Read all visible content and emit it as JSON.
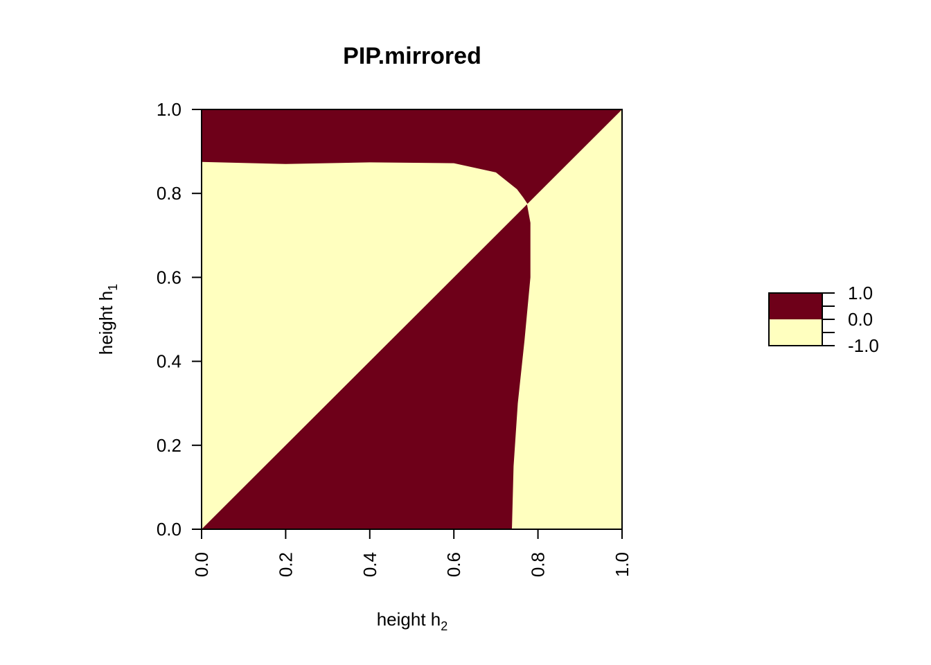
{
  "chart_data": {
    "type": "heatmap",
    "title": "PIP.mirrored",
    "xlabel": {
      "base": "height h",
      "subscript": "2"
    },
    "ylabel": {
      "base": "height h",
      "subscript": "1"
    },
    "xlim": [
      0,
      1
    ],
    "ylim": [
      0,
      1
    ],
    "x_ticks": [
      "0.0",
      "0.2",
      "0.4",
      "0.6",
      "0.8",
      "1.0"
    ],
    "y_ticks": [
      "0.0",
      "0.2",
      "0.4",
      "0.6",
      "0.8",
      "1.0"
    ],
    "grid": false,
    "legend": {
      "placement": "right",
      "labels": [
        "1.0",
        "0.0",
        "-1.0"
      ],
      "levels": [
        {
          "range": [
            0,
            1
          ],
          "color": "#6e0019"
        },
        {
          "range": [
            -1,
            0
          ],
          "color": "#ffffbf"
        }
      ]
    },
    "colors": {
      "positive": "#6e0019",
      "negative": "#ffffbf"
    },
    "regions": [
      {
        "value": 1,
        "boundary": [
          [
            0.0,
            1.0
          ],
          [
            1.0,
            1.0
          ],
          [
            0.775,
            0.775
          ],
          [
            0.765,
            0.79
          ],
          [
            0.75,
            0.81
          ],
          [
            0.7,
            0.85
          ],
          [
            0.6,
            0.872
          ],
          [
            0.4,
            0.874
          ],
          [
            0.2,
            0.87
          ],
          [
            0.0,
            0.875
          ]
        ]
      },
      {
        "value": 1,
        "boundary": [
          [
            0.0,
            0.0
          ],
          [
            0.774,
            0.774
          ],
          [
            0.782,
            0.73
          ],
          [
            0.782,
            0.6
          ],
          [
            0.768,
            0.45
          ],
          [
            0.752,
            0.3
          ],
          [
            0.742,
            0.15
          ],
          [
            0.738,
            0.0
          ]
        ]
      }
    ]
  }
}
